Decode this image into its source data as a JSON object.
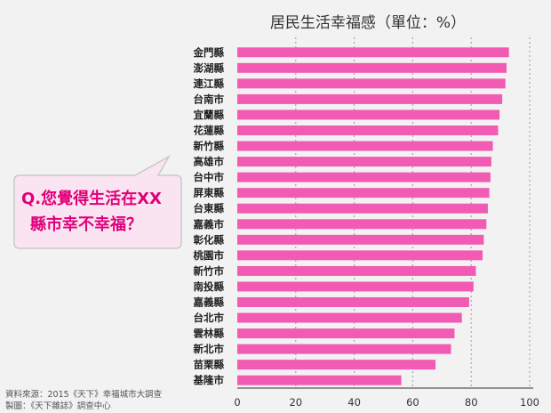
{
  "chart_data": {
    "type": "bar",
    "orientation": "horizontal",
    "title": "居民生活幸福感（單位：%）",
    "categories": [
      "金門縣",
      "澎湖縣",
      "連江縣",
      "台南市",
      "宜蘭縣",
      "花蓮縣",
      "新竹縣",
      "高雄市",
      "台中市",
      "屏東縣",
      "台東縣",
      "嘉義市",
      "彰化縣",
      "桃園市",
      "新竹市",
      "南投縣",
      "嘉義縣",
      "台北市",
      "雲林縣",
      "新北市",
      "苗栗縣",
      "基隆市"
    ],
    "values": [
      92.9,
      92.1,
      91.7,
      90.6,
      89.7,
      89.2,
      87.4,
      86.9,
      86.6,
      86.2,
      85.7,
      85.2,
      84.3,
      83.9,
      81.6,
      80.8,
      79.3,
      76.8,
      74.3,
      73.1,
      67.8,
      56.1
    ],
    "xlim": [
      0,
      100
    ],
    "xticks": [
      "0",
      "20",
      "40",
      "60",
      "80",
      "100"
    ],
    "bar_color": "#f25bb3",
    "grid": true
  },
  "callout": {
    "line1": "Q.您覺得生活在XX",
    "line2": "縣市幸不幸福？",
    "text_color": "#e0007a",
    "fill_color": "#fbe4f1",
    "border_color": "#c9c9c9"
  },
  "source": {
    "line1": "資料來源：2015《天下》幸福城市大調查",
    "line2": "製圖：《天下雜誌》調查中心"
  }
}
